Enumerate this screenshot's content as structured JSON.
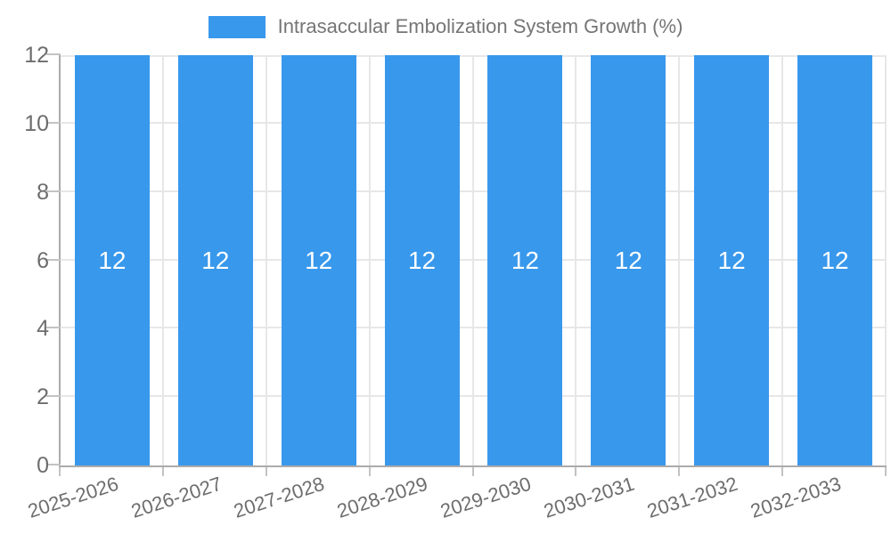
{
  "legend": {
    "label": "Intrasaccular Embolization System Growth (%)"
  },
  "chart_data": {
    "type": "bar",
    "title": "Intrasaccular Embolization System Growth (%)",
    "categories": [
      "2025-2026",
      "2026-2027",
      "2027-2028",
      "2028-2029",
      "2029-2030",
      "2030-2031",
      "2031-2032",
      "2032-2033"
    ],
    "series": [
      {
        "name": "Intrasaccular Embolization System Growth (%)",
        "values": [
          12,
          12,
          12,
          12,
          12,
          12,
          12,
          12
        ]
      }
    ],
    "bar_value_labels": [
      "12",
      "12",
      "12",
      "12",
      "12",
      "12",
      "12",
      "12"
    ],
    "xlabel": "",
    "ylabel": "",
    "ylim": [
      0,
      12
    ],
    "yticks": [
      0,
      2,
      4,
      6,
      8,
      10,
      12
    ],
    "grid": true,
    "legend_position": "top",
    "x_tick_rotation_deg": -18,
    "colors": {
      "bar": "#3898ec",
      "bar_value_label": "#ffffff",
      "axis_text": "#6d6d6d",
      "legend_text": "#757575",
      "gridline": "#e7e7e7",
      "axis_line": "#ababab",
      "tick_mark": "#c3c3c3",
      "background": "#ffffff"
    }
  }
}
